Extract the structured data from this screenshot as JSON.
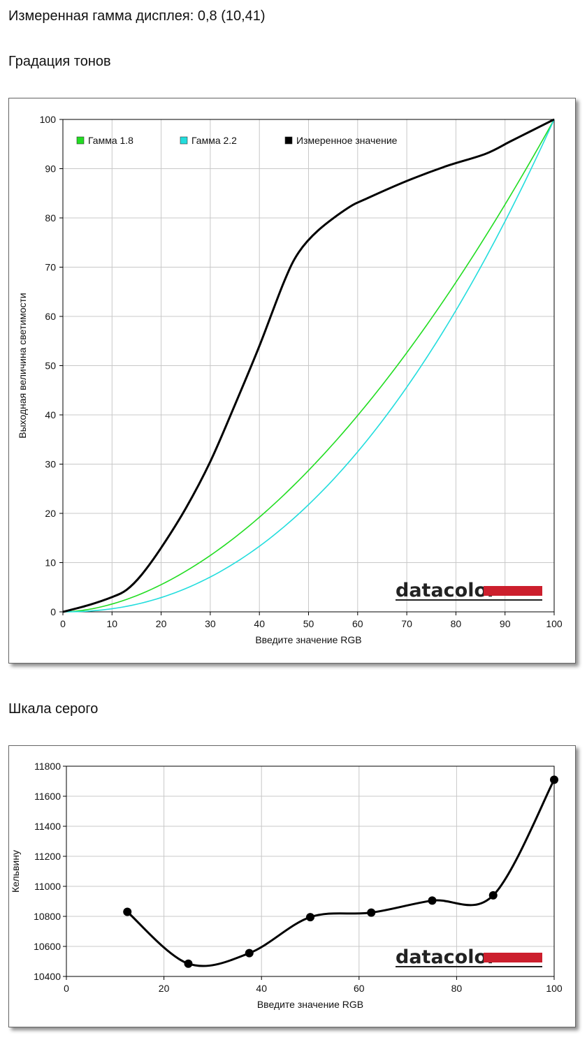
{
  "header": {
    "gamma_measured": "Измеренная гамма дисплея: 0,8 (10,41)",
    "tone_section": "Градация тонов",
    "gray_section": "Шкала серого"
  },
  "brand": {
    "logo_text": "datacolor",
    "logo_color": "#cc1f2d"
  },
  "chart_data": [
    {
      "type": "line",
      "title": "",
      "xlabel": "Введите значение RGB",
      "ylabel": "Выходная величина светимости",
      "xlim": [
        0,
        100
      ],
      "ylim": [
        0,
        100
      ],
      "xticks": [
        "0",
        "10",
        "20",
        "30",
        "40",
        "50",
        "60",
        "70",
        "80",
        "90",
        "100"
      ],
      "yticks": [
        "0",
        "10",
        "20",
        "30",
        "40",
        "50",
        "60",
        "70",
        "80",
        "90",
        "100"
      ],
      "grid": true,
      "legend": "top-left",
      "series": [
        {
          "name": "Гамма 1.8",
          "color": "#22dd22",
          "gamma": 1.8
        },
        {
          "name": "Гамма 2.2",
          "color": "#22dddd",
          "gamma": 2.2
        },
        {
          "name": "Измеренное значение",
          "color": "#000000",
          "x": [
            0,
            5,
            10,
            13,
            16,
            20,
            25,
            30,
            35,
            40,
            45,
            48,
            52,
            58,
            62,
            70,
            78,
            86,
            91,
            95,
            100
          ],
          "y": [
            0,
            1.3,
            3,
            4.5,
            7.5,
            13,
            21,
            30.5,
            42,
            54,
            67,
            73,
            77.5,
            82,
            84,
            87.5,
            90.5,
            93,
            95.5,
            97.5,
            100
          ]
        }
      ]
    },
    {
      "type": "line",
      "title": "",
      "xlabel": "Введите значение RGB",
      "ylabel": "Кельвину",
      "xlim": [
        0,
        100
      ],
      "ylim": [
        10400,
        11800
      ],
      "xticks": [
        "0",
        "20",
        "40",
        "60",
        "80",
        "100"
      ],
      "yticks": [
        "10400",
        "10600",
        "10800",
        "11000",
        "11200",
        "11400",
        "11600",
        "11800"
      ],
      "grid": true,
      "series": [
        {
          "name": "",
          "color": "#000000",
          "markers": true,
          "x": [
            12.5,
            25,
            37.5,
            50,
            62.5,
            75,
            87.5,
            100
          ],
          "y": [
            10830,
            10485,
            10555,
            10795,
            10825,
            10905,
            10940,
            11710
          ]
        }
      ]
    }
  ]
}
